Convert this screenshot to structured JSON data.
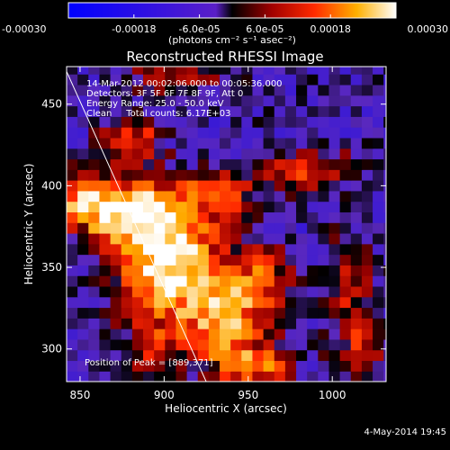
{
  "chart_data": {
    "type": "heatmap",
    "title": "Reconstructed RHESSI Image",
    "xlabel": "Heliocentric X (arcsec)",
    "ylabel": "Heliocentric Y (arcsec)",
    "xlim": [
      842,
      1032
    ],
    "ylim": [
      280,
      473
    ],
    "x_ticks": [
      850,
      900,
      950,
      1000
    ],
    "y_ticks": [
      300,
      350,
      400,
      450
    ],
    "colorbar": {
      "range": [
        -0.0003,
        0.0003
      ],
      "tick_values": [
        -0.0003,
        -0.00018,
        -6e-05,
        6e-05,
        0.00018,
        0.0003
      ],
      "tick_labels": [
        "-0.00030",
        "-0.00018",
        "-6.0e-05",
        "6.0e-05",
        "0.00018",
        "0.00030"
      ],
      "units_label": "(photons cm⁻² s⁻¹ asec⁻²)"
    },
    "annotations": [
      "14-Mar-2012 00:02:06.000 to 00:05:36.000",
      "Detectors: 3F 5F 6F 7F 8F 9F, Att 0",
      "Energy Range: 25.0 - 50.0 keV",
      "Clean     Total counts: 6.17E+03"
    ],
    "peak_label": "Position of Peak = [889,371]",
    "peak": [
      889,
      371
    ],
    "limb_line": [
      [
        842,
        470
      ],
      [
        925,
        280
      ]
    ],
    "source_blobs": [
      {
        "x": 905,
        "y": 352,
        "sx": 22,
        "sy": 28,
        "amp": 1.0
      },
      {
        "x": 875,
        "y": 385,
        "sx": 22,
        "sy": 14,
        "amp": 0.9
      },
      {
        "x": 850,
        "y": 395,
        "sx": 10,
        "sy": 10,
        "amp": 0.5
      },
      {
        "x": 938,
        "y": 318,
        "sx": 14,
        "sy": 18,
        "amp": 0.7
      },
      {
        "x": 955,
        "y": 290,
        "sx": 16,
        "sy": 10,
        "amp": 0.6
      },
      {
        "x": 960,
        "y": 342,
        "sx": 12,
        "sy": 14,
        "amp": 0.5
      },
      {
        "x": 985,
        "y": 410,
        "sx": 20,
        "sy": 8,
        "amp": 0.5
      },
      {
        "x": 1010,
        "y": 342,
        "sx": 10,
        "sy": 20,
        "amp": 0.45
      },
      {
        "x": 1018,
        "y": 300,
        "sx": 10,
        "sy": 14,
        "amp": 0.4
      },
      {
        "x": 880,
        "y": 430,
        "sx": 12,
        "sy": 10,
        "amp": 0.5
      },
      {
        "x": 905,
        "y": 468,
        "sx": 18,
        "sy": 8,
        "amp": 0.45
      },
      {
        "x": 892,
        "y": 300,
        "sx": 12,
        "sy": 12,
        "amp": 0.35
      },
      {
        "x": 935,
        "y": 395,
        "sx": 16,
        "sy": 10,
        "amp": 0.4
      }
    ]
  },
  "timestamp": "4-May-2014 19:45"
}
